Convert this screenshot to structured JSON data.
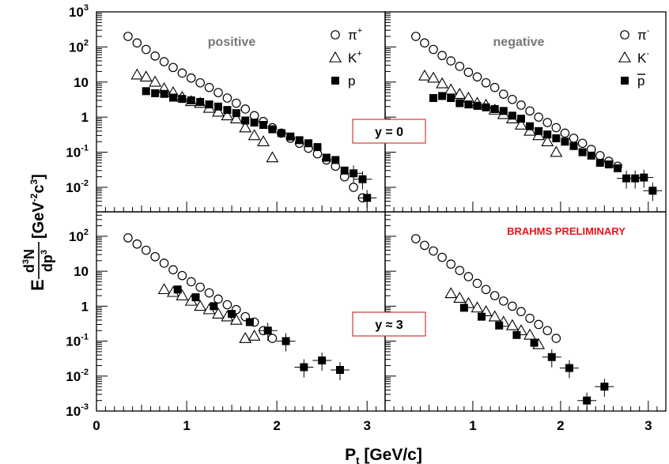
{
  "chart_data": {
    "type": "scatter",
    "y_scale": "log",
    "xlim": [
      0,
      3.2
    ],
    "ylim_top": [
      0.002,
      1000
    ],
    "ylim_bottom": [
      0.001,
      500
    ],
    "x_ticks": [
      {
        "v": 0,
        "label": "0"
      },
      {
        "v": 1,
        "label": "1"
      },
      {
        "v": 2,
        "label": "2"
      },
      {
        "v": 3,
        "label": "3"
      }
    ],
    "y_ticks_top": [
      {
        "v": 0.01,
        "base": "10",
        "exp": "-2"
      },
      {
        "v": 0.1,
        "base": "10",
        "exp": "-1"
      },
      {
        "v": 1,
        "label": "1"
      },
      {
        "v": 10,
        "label": "10"
      },
      {
        "v": 100,
        "base": "10",
        "exp": "2"
      },
      {
        "v": 1000,
        "base": "10",
        "exp": "3"
      }
    ],
    "y_ticks_bottom": [
      {
        "v": 0.001,
        "base": "10",
        "exp": "-3"
      },
      {
        "v": 0.01,
        "base": "10",
        "exp": "-2"
      },
      {
        "v": 0.1,
        "base": "10",
        "exp": "-1"
      },
      {
        "v": 1,
        "label": "1"
      },
      {
        "v": 10,
        "label": "10"
      },
      {
        "v": 100,
        "base": "10",
        "exp": "2"
      }
    ],
    "xlabel": {
      "main": "P",
      "sub": "t",
      "rest": " [GeV/c]"
    },
    "ylabel": {
      "e": "E",
      "num_pre": "d",
      "num_sup": "3",
      "num_post": "N",
      "den_pre": "dp",
      "den_sup": "3",
      "u1": " [GeV",
      "u1_sup": "-2",
      "u2": "c",
      "u2_sup": "3",
      "u3": "]"
    },
    "legends": {
      "positive": [
        {
          "marker": "circle",
          "base": "π",
          "sup": "+"
        },
        {
          "marker": "triangle",
          "base": "K",
          "sup": "+"
        },
        {
          "marker": "square",
          "base": "p",
          "sup": ""
        }
      ],
      "negative": [
        {
          "marker": "circle",
          "base": "π",
          "sup": "-"
        },
        {
          "marker": "triangle",
          "base": "K",
          "sup": "-"
        },
        {
          "marker": "square",
          "base": "p",
          "sup": "",
          "overline": true
        }
      ]
    },
    "panel_labels": {
      "positive": "positive",
      "negative": "negative"
    },
    "rapidity_labels": {
      "top": "y = 0",
      "bottom": "y ≈ 3"
    },
    "annotation": "BRAHMS PRELIMINARY",
    "panels": [
      {
        "id": "top-positive",
        "series": [
          {
            "marker": "circle",
            "points": [
              [
                0.35,
                200
              ],
              [
                0.45,
                130
              ],
              [
                0.55,
                85
              ],
              [
                0.65,
                55
              ],
              [
                0.75,
                38
              ],
              [
                0.85,
                26
              ],
              [
                0.95,
                18
              ],
              [
                1.05,
                13
              ],
              [
                1.15,
                9.5
              ],
              [
                1.25,
                7
              ],
              [
                1.35,
                5
              ],
              [
                1.45,
                3.5
              ],
              [
                1.55,
                2.5
              ],
              [
                1.65,
                1.7
              ],
              [
                1.75,
                1.1
              ],
              [
                1.85,
                0.75
              ],
              [
                1.95,
                0.5
              ],
              [
                2.05,
                0.35
              ],
              [
                2.15,
                0.25
              ],
              [
                2.25,
                0.18
              ],
              [
                2.35,
                0.13
              ],
              [
                2.45,
                0.09
              ],
              [
                2.55,
                0.06
              ],
              [
                2.65,
                0.04
              ],
              [
                2.75,
                0.02
              ],
              [
                2.85,
                0.01
              ],
              [
                2.95,
                0.005
              ]
            ]
          },
          {
            "marker": "triangle",
            "points": [
              [
                0.45,
                16
              ],
              [
                0.55,
                14
              ],
              [
                0.65,
                10
              ],
              [
                0.75,
                6.5
              ],
              [
                0.85,
                5
              ],
              [
                0.95,
                3.7
              ],
              [
                1.05,
                2.8
              ],
              [
                1.15,
                2.5
              ],
              [
                1.25,
                1.8
              ],
              [
                1.35,
                1.4
              ],
              [
                1.45,
                1.1
              ],
              [
                1.55,
                0.9
              ],
              [
                1.65,
                0.5
              ],
              [
                1.75,
                0.3
              ],
              [
                1.85,
                0.2
              ],
              [
                1.95,
                0.07
              ]
            ]
          },
          {
            "marker": "square",
            "points": [
              [
                0.55,
                5.5
              ],
              [
                0.65,
                4.8
              ],
              [
                0.75,
                4.6
              ],
              [
                0.85,
                3.6
              ],
              [
                0.95,
                3.3
              ],
              [
                1.05,
                3
              ],
              [
                1.15,
                2.7
              ],
              [
                1.25,
                2.3
              ],
              [
                1.35,
                2
              ],
              [
                1.45,
                1.6
              ],
              [
                1.55,
                1.3
              ],
              [
                1.65,
                0.8
              ],
              [
                1.75,
                0.7
              ],
              [
                1.85,
                0.6
              ],
              [
                1.95,
                0.45
              ],
              [
                2.05,
                0.35
              ],
              [
                2.15,
                0.28
              ],
              [
                2.25,
                0.22
              ],
              [
                2.35,
                0.18
              ],
              [
                2.45,
                0.14
              ],
              [
                2.55,
                0.07
              ],
              [
                2.65,
                0.06
              ],
              [
                2.75,
                0.03
              ],
              [
                2.85,
                0.025
              ],
              [
                2.95,
                0.017
              ],
              [
                3.0,
                0.005
              ]
            ]
          }
        ]
      },
      {
        "id": "top-negative",
        "series": [
          {
            "marker": "circle",
            "points": [
              [
                0.35,
                200
              ],
              [
                0.45,
                130
              ],
              [
                0.55,
                85
              ],
              [
                0.65,
                57
              ],
              [
                0.75,
                40
              ],
              [
                0.85,
                28
              ],
              [
                0.95,
                19
              ],
              [
                1.05,
                14
              ],
              [
                1.15,
                9.5
              ],
              [
                1.25,
                7
              ],
              [
                1.35,
                4.5
              ],
              [
                1.45,
                3.2
              ],
              [
                1.55,
                2.2
              ],
              [
                1.65,
                1.5
              ],
              [
                1.75,
                1
              ],
              [
                1.85,
                0.7
              ],
              [
                1.95,
                0.5
              ],
              [
                2.05,
                0.35
              ],
              [
                2.15,
                0.25
              ],
              [
                2.25,
                0.18
              ],
              [
                2.35,
                0.12
              ],
              [
                2.45,
                0.08
              ],
              [
                2.55,
                0.055
              ],
              [
                2.65,
                0.04
              ]
            ]
          },
          {
            "marker": "triangle",
            "points": [
              [
                0.45,
                15
              ],
              [
                0.55,
                13
              ],
              [
                0.65,
                9
              ],
              [
                0.75,
                6
              ],
              [
                0.85,
                4.5
              ],
              [
                0.95,
                3.5
              ],
              [
                1.05,
                2.5
              ],
              [
                1.15,
                2.2
              ],
              [
                1.25,
                1.6
              ],
              [
                1.35,
                1.2
              ],
              [
                1.45,
                0.9
              ],
              [
                1.55,
                0.6
              ],
              [
                1.65,
                0.4
              ],
              [
                1.75,
                0.3
              ],
              [
                1.85,
                0.2
              ],
              [
                1.95,
                0.1
              ]
            ]
          },
          {
            "marker": "square",
            "points": [
              [
                0.55,
                3.5
              ],
              [
                0.65,
                4
              ],
              [
                0.75,
                3.5
              ],
              [
                0.85,
                2.5
              ],
              [
                0.95,
                2.3
              ],
              [
                1.05,
                2.1
              ],
              [
                1.15,
                1.9
              ],
              [
                1.25,
                1.7
              ],
              [
                1.35,
                1.5
              ],
              [
                1.45,
                1.1
              ],
              [
                1.55,
                0.9
              ],
              [
                1.65,
                0.55
              ],
              [
                1.75,
                0.4
              ],
              [
                1.85,
                0.32
              ],
              [
                1.95,
                0.25
              ],
              [
                2.05,
                0.2
              ],
              [
                2.15,
                0.15
              ],
              [
                2.25,
                0.1
              ],
              [
                2.35,
                0.08
              ],
              [
                2.45,
                0.05
              ],
              [
                2.55,
                0.045
              ],
              [
                2.65,
                0.035
              ],
              [
                2.75,
                0.018
              ],
              [
                2.85,
                0.018
              ],
              [
                2.95,
                0.019
              ],
              [
                3.05,
                0.008
              ]
            ]
          }
        ]
      },
      {
        "id": "bottom-positive",
        "series": [
          {
            "marker": "circle",
            "points": [
              [
                0.35,
                90
              ],
              [
                0.45,
                60
              ],
              [
                0.55,
                40
              ],
              [
                0.65,
                26
              ],
              [
                0.75,
                17
              ],
              [
                0.85,
                11
              ],
              [
                0.95,
                7.5
              ],
              [
                1.05,
                5
              ],
              [
                1.15,
                3.5
              ],
              [
                1.25,
                2.4
              ],
              [
                1.35,
                1.6
              ],
              [
                1.45,
                1.1
              ],
              [
                1.55,
                0.8
              ],
              [
                1.65,
                0.5
              ],
              [
                1.75,
                0.35
              ],
              [
                1.85,
                0.2
              ],
              [
                1.95,
                0.12
              ]
            ]
          },
          {
            "marker": "triangle",
            "points": [
              [
                0.75,
                3
              ],
              [
                0.85,
                2.5
              ],
              [
                0.95,
                2
              ],
              [
                1.05,
                1.4
              ],
              [
                1.15,
                1
              ],
              [
                1.25,
                0.8
              ],
              [
                1.35,
                0.6
              ],
              [
                1.45,
                0.5
              ],
              [
                1.55,
                0.4
              ],
              [
                1.65,
                0.12
              ],
              [
                1.75,
                0.14
              ]
            ]
          },
          {
            "marker": "square",
            "points": [
              [
                0.9,
                3
              ],
              [
                1.1,
                1.8
              ],
              [
                1.3,
                1
              ],
              [
                1.5,
                0.6
              ],
              [
                1.7,
                0.35
              ],
              [
                1.9,
                0.2
              ],
              [
                2.1,
                0.1
              ],
              [
                2.3,
                0.018
              ],
              [
                2.5,
                0.028
              ],
              [
                2.7,
                0.015
              ]
            ]
          }
        ]
      },
      {
        "id": "bottom-negative",
        "series": [
          {
            "marker": "circle",
            "points": [
              [
                0.35,
                85
              ],
              [
                0.45,
                55
              ],
              [
                0.55,
                38
              ],
              [
                0.65,
                25
              ],
              [
                0.75,
                16
              ],
              [
                0.85,
                10.5
              ],
              [
                0.95,
                7
              ],
              [
                1.05,
                4.5
              ],
              [
                1.15,
                3
              ],
              [
                1.25,
                2
              ],
              [
                1.35,
                1.4
              ],
              [
                1.45,
                1
              ],
              [
                1.55,
                0.7
              ],
              [
                1.65,
                0.45
              ],
              [
                1.75,
                0.3
              ],
              [
                1.85,
                0.2
              ],
              [
                1.95,
                0.12
              ]
            ]
          },
          {
            "marker": "triangle",
            "points": [
              [
                0.75,
                2.3
              ],
              [
                0.85,
                1.7
              ],
              [
                0.95,
                1.2
              ],
              [
                1.05,
                0.9
              ],
              [
                1.15,
                0.7
              ],
              [
                1.25,
                0.5
              ],
              [
                1.35,
                0.35
              ],
              [
                1.45,
                0.28
              ],
              [
                1.55,
                0.2
              ],
              [
                1.65,
                0.15
              ],
              [
                1.75,
                0.08
              ]
            ]
          },
          {
            "marker": "square",
            "points": [
              [
                0.9,
                0.9
              ],
              [
                1.1,
                0.5
              ],
              [
                1.3,
                0.28
              ],
              [
                1.5,
                0.15
              ],
              [
                1.7,
                0.09
              ],
              [
                1.9,
                0.035
              ],
              [
                2.1,
                0.017
              ],
              [
                2.3,
                0.002
              ],
              [
                2.5,
                0.005
              ]
            ]
          }
        ]
      }
    ]
  }
}
